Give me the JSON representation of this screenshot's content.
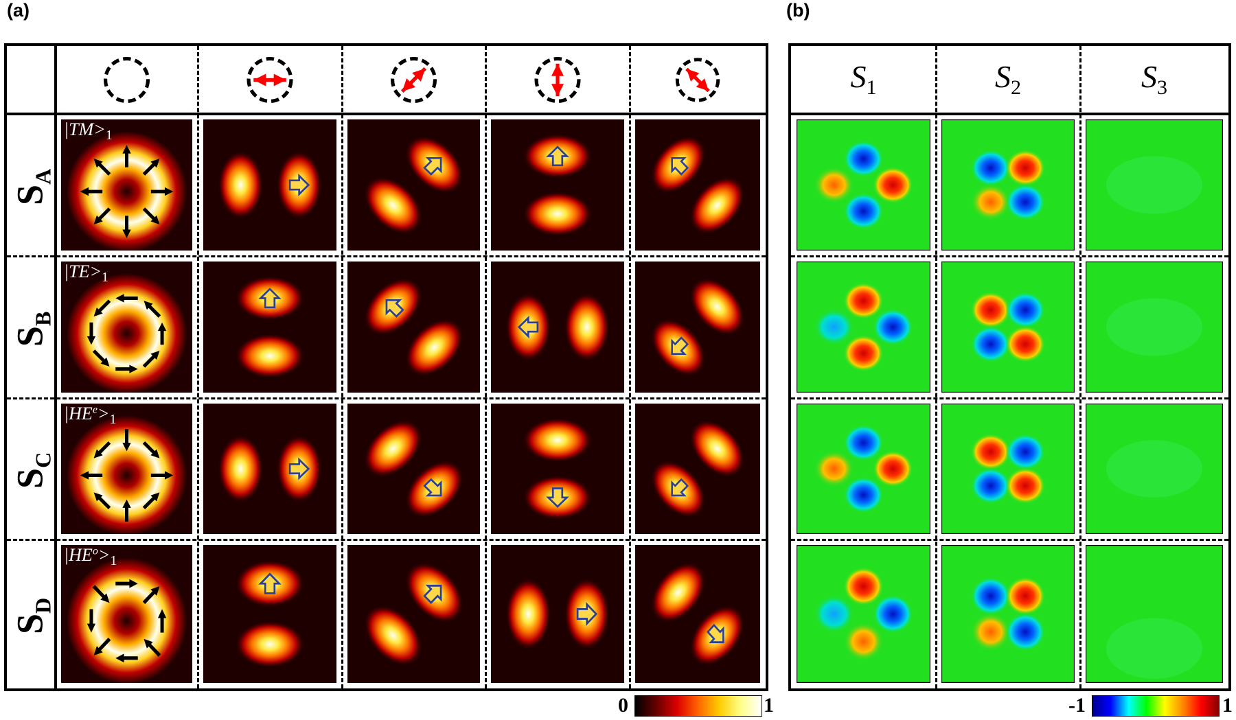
{
  "panel_a": {
    "label": "(a)",
    "row_labels": [
      {
        "main": "S",
        "sub": "A"
      },
      {
        "main": "S",
        "sub": "B"
      },
      {
        "main": "S",
        "sub": "C"
      },
      {
        "main": "S",
        "sub": "D"
      }
    ],
    "polarizer_angles": [
      null,
      0,
      45,
      90,
      -45
    ],
    "mode_labels": [
      {
        "text": "|TM>",
        "sup": "",
        "sub": "1",
        "field": "radial"
      },
      {
        "text": "|TE>",
        "sup": "",
        "sub": "1",
        "field": "azimuthal"
      },
      {
        "text": "|HE",
        "sup": "e",
        "after": ">",
        "sub": "1",
        "field": "hybrid-even"
      },
      {
        "text": "|HE",
        "sup": "o",
        "after": ">",
        "sub": "1",
        "field": "hybrid-odd"
      }
    ],
    "lobe_axes_deg": [
      [
        0,
        45,
        90,
        -45
      ],
      [
        90,
        -45,
        0,
        45
      ],
      [
        0,
        -45,
        90,
        45
      ],
      [
        90,
        45,
        0,
        -45
      ]
    ],
    "arrow_dirs_deg": [
      [
        0,
        45,
        90,
        135
      ],
      [
        90,
        135,
        180,
        -135
      ],
      [
        0,
        -45,
        -90,
        -135
      ],
      [
        90,
        45,
        0,
        -45
      ]
    ],
    "colorbar": {
      "min": "0",
      "max": "1"
    }
  },
  "panel_b": {
    "label": "(b)",
    "headers": [
      {
        "main": "S",
        "sub": "1"
      },
      {
        "main": "S",
        "sub": "2"
      },
      {
        "main": "S",
        "sub": "3"
      }
    ],
    "patterns": [
      [
        [
          "b",
          "r",
          "b",
          "o"
        ],
        [
          "b",
          "r",
          "o",
          "b"
        ],
        "flat"
      ],
      [
        [
          "r",
          "b",
          "r",
          "c"
        ],
        [
          "r",
          "b",
          "b",
          "r"
        ],
        "flat"
      ],
      [
        [
          "b",
          "r",
          "b",
          "o"
        ],
        [
          "r",
          "b",
          "b",
          "r"
        ],
        "flat"
      ],
      [
        [
          "r",
          "b",
          "o",
          "c"
        ],
        [
          "b",
          "r",
          "o",
          "b"
        ],
        "flat"
      ]
    ],
    "colorbar": {
      "min": "-1",
      "max": "1"
    }
  }
}
